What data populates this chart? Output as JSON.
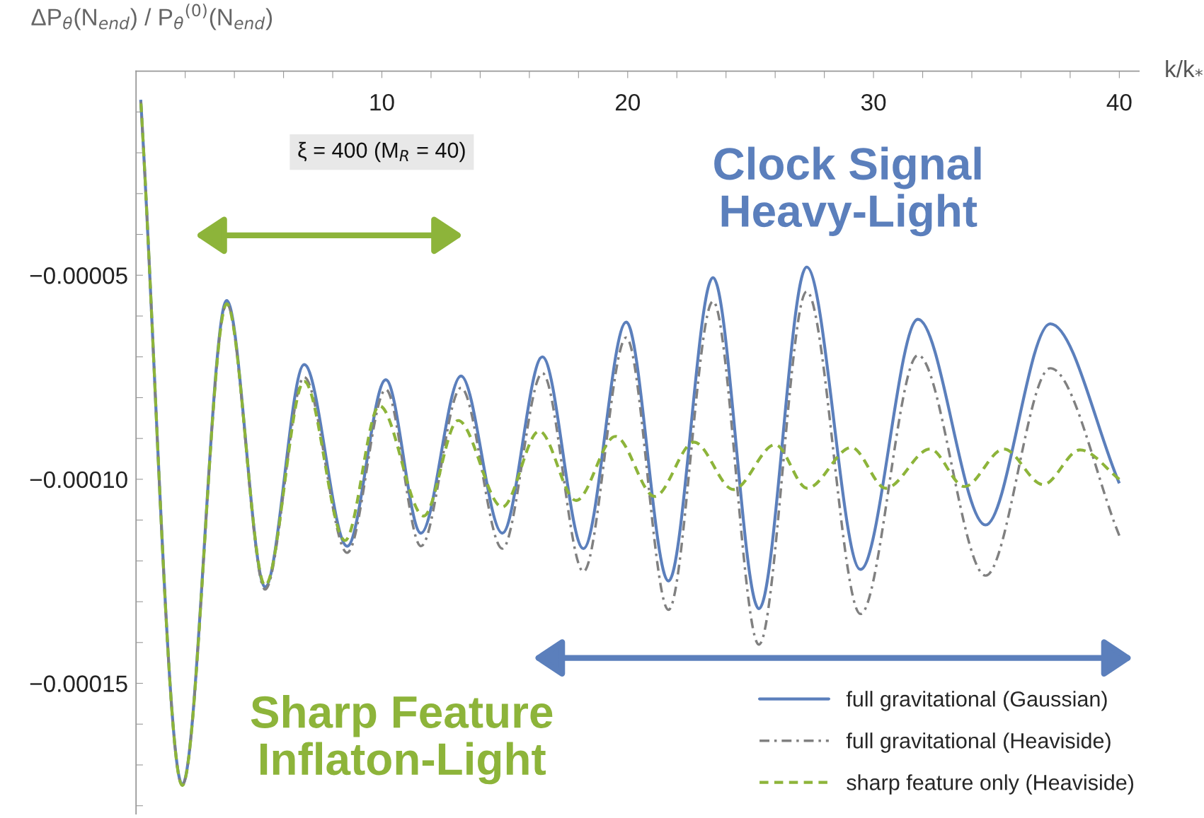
{
  "chart_data": {
    "type": "line",
    "xlabel": "k/k$_{*}$",
    "ylabel": "ΔP$_{θ}$(N$_{end}$) / P$_{θ}$$^{(0)}$(N$_{end}$)",
    "xlim": [
      0,
      40.8
    ],
    "ylim": [
      -0.000182,
      0
    ],
    "xticks": [
      {
        "value": 2,
        "label": null
      },
      {
        "value": 4,
        "label": null
      },
      {
        "value": 6,
        "label": null
      },
      {
        "value": 8,
        "label": null
      },
      10,
      {
        "value": 12,
        "label": null
      },
      {
        "value": 14,
        "label": null
      },
      {
        "value": 16,
        "label": null
      },
      {
        "value": 18,
        "label": null
      },
      20,
      {
        "value": 22,
        "label": null
      },
      {
        "value": 24,
        "label": null
      },
      {
        "value": 26,
        "label": null
      },
      {
        "value": 28,
        "label": null
      },
      30,
      {
        "value": 32,
        "label": null
      },
      {
        "value": 34,
        "label": null
      },
      {
        "value": 36,
        "label": null
      },
      {
        "value": 38,
        "label": null
      },
      40
    ],
    "yticks": [
      {
        "value": -1e-05,
        "label": null
      },
      {
        "value": -2e-05,
        "label": null
      },
      {
        "value": -3e-05,
        "label": null
      },
      {
        "value": -4e-05,
        "label": null
      },
      {
        "value": -5e-05,
        "label": "−0.00005"
      },
      {
        "value": -6e-05,
        "label": null
      },
      {
        "value": -7e-05,
        "label": null
      },
      {
        "value": -8e-05,
        "label": null
      },
      {
        "value": -9e-05,
        "label": null
      },
      {
        "value": -0.0001,
        "label": "−0.00010"
      },
      {
        "value": -0.00011,
        "label": null
      },
      {
        "value": -0.00012,
        "label": null
      },
      {
        "value": -0.00013,
        "label": null
      },
      {
        "value": -0.00014,
        "label": null
      },
      {
        "value": -0.00015,
        "label": "−0.00015"
      },
      {
        "value": -0.00016,
        "label": null
      },
      {
        "value": -0.00017,
        "label": null
      },
      {
        "value": -0.00018,
        "label": null
      }
    ],
    "grid": false,
    "legend": "bottom right",
    "annotations": [
      "ξ = 400 (M$_{R}$ = 40)",
      "Clock Signal\nHeavy-Light",
      "Sharp Feature\nInflaton-Light"
    ],
    "series": [
      {
        "name": "full gravitational (Gaussian)",
        "color": "#5b7fbc",
        "line_style": "solid",
        "x": [
          0.19,
          1.88,
          3.69,
          5.25,
          6.84,
          8.59,
          10.16,
          11.59,
          13.22,
          14.9,
          16.53,
          18.2,
          19.94,
          21.66,
          23.47,
          25.34,
          27.28,
          29.47,
          31.81,
          34.56,
          37.19,
          40
        ],
        "values": [
          -7e-06,
          -0.0001748,
          -5.62e-05,
          -0.0001264,
          -7.19e-05,
          -0.0001164,
          -7.56e-05,
          -0.0001132,
          -7.47e-05,
          -0.0001132,
          -7e-05,
          -0.000117,
          -6.15e-05,
          -0.0001249,
          -5.06e-05,
          -0.0001317,
          -4.8e-05,
          -0.0001221,
          -6.08e-05,
          -0.0001112,
          -6.19e-05,
          -0.000101
        ]
      },
      {
        "name": "full gravitational (Heaviside)",
        "color": "#808080",
        "line_style": "dashdot",
        "x": [
          0.19,
          1.88,
          3.69,
          5.25,
          6.84,
          8.59,
          10.16,
          11.59,
          13.22,
          14.9,
          16.53,
          18.2,
          19.94,
          21.66,
          23.47,
          25.34,
          27.28,
          29.47,
          31.81,
          34.56,
          37.19,
          40
        ],
        "values": [
          -7e-06,
          -0.000175,
          -5.7e-05,
          -0.000127,
          -7.5e-05,
          -0.000118,
          -7.8e-05,
          -0.0001164,
          -7.76e-05,
          -0.000117,
          -7.4e-05,
          -0.0001226,
          -6.53e-05,
          -0.000132,
          -5.64e-05,
          -0.0001405,
          -5.4e-05,
          -0.000133,
          -6.96e-05,
          -0.0001236,
          -7.28e-05,
          -0.0001138
        ]
      },
      {
        "name": "sharp feature only (Heaviside)",
        "color": "#8db43a",
        "line_style": "dashed",
        "x": [
          0.19,
          1.88,
          3.69,
          5.25,
          6.84,
          8.5,
          9.9,
          11.7,
          13.1,
          14.9,
          16.4,
          17.9,
          19.5,
          21.1,
          22.7,
          24.3,
          26.0,
          27.3,
          29.1,
          30.5,
          32.3,
          33.7,
          35.3,
          36.9,
          38.4,
          40
        ],
        "values": [
          -7e-06,
          -0.000175,
          -5.7e-05,
          -0.000126,
          -7.6e-05,
          -0.000115,
          -8.2e-05,
          -0.000109,
          -8.56e-05,
          -0.0001068,
          -8.82e-05,
          -0.0001052,
          -8.95e-05,
          -0.0001042,
          -9.09e-05,
          -0.0001025,
          -9.15e-05,
          -0.0001022,
          -9.22e-05,
          -0.0001022,
          -9.26e-05,
          -0.0001018,
          -9.26e-05,
          -0.0001013,
          -9.28e-05,
          -0.0001
        ]
      }
    ]
  }
}
